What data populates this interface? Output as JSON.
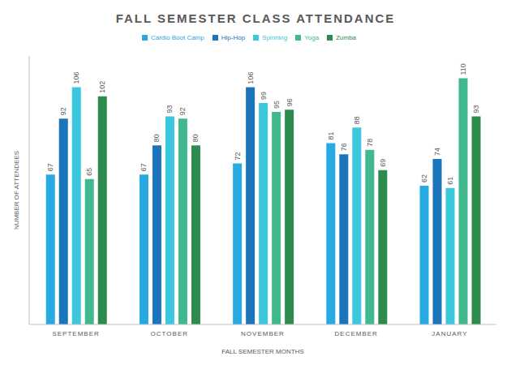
{
  "chart_data": {
    "type": "bar",
    "title": "FALL SEMESTER CLASS ATTENDANCE",
    "x_label": "FALL SEMESTER MONTHS",
    "y_label": "NUMBER OF ATTENDEES",
    "categories": [
      "SEPTEMBER",
      "OCTOBER",
      "NOVEMBER",
      "DECEMBER",
      "JANUARY"
    ],
    "series": [
      {
        "name": "Cardio Boot Camp",
        "color": "#27a9e1",
        "values": [
          67,
          67,
          72,
          81,
          62
        ]
      },
      {
        "name": "Hip-Hop",
        "color": "#1b75bb",
        "values": [
          92,
          80,
          106,
          76,
          74
        ]
      },
      {
        "name": "Spinning",
        "color": "#3cc8dc",
        "values": [
          106,
          93,
          99,
          88,
          61
        ]
      },
      {
        "name": "Yoga",
        "color": "#40b98f",
        "values": [
          65,
          92,
          95,
          78,
          110
        ]
      },
      {
        "name": "Zumba",
        "color": "#2e8b4e",
        "values": [
          102,
          80,
          96,
          69,
          93
        ]
      }
    ],
    "ylim": [
      0,
      120
    ],
    "grid": false,
    "legend": "top",
    "data_labels": true,
    "tick_labels": "x"
  }
}
